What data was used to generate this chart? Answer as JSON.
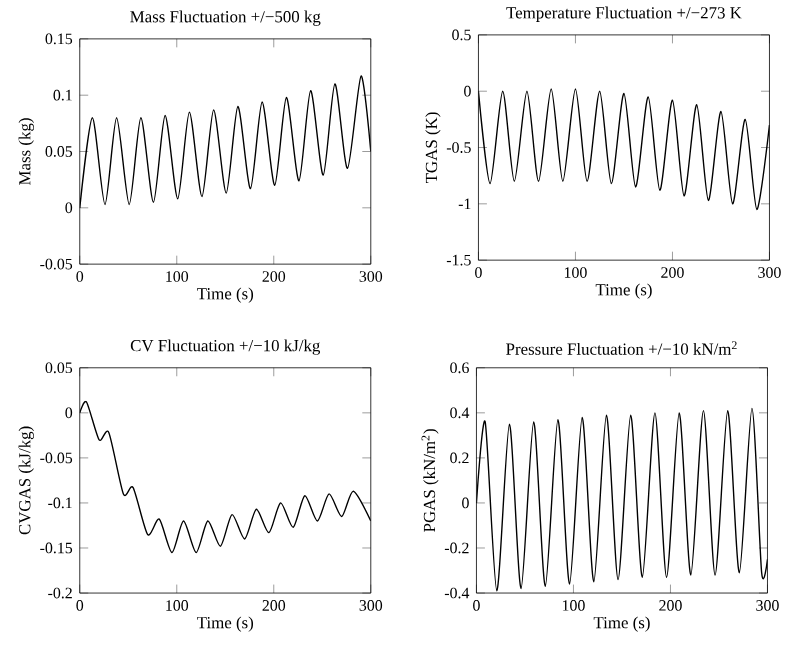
{
  "chart_data": [
    {
      "type": "line",
      "title": "Mass Fluctuation +/−500 kg",
      "xlabel": "Time (s)",
      "ylabel": "Mass (kg)",
      "xlim": [
        0,
        300
      ],
      "ylim": [
        -0.05,
        0.15
      ],
      "xticks": [
        0,
        100,
        200,
        300
      ],
      "yticks": [
        -0.05,
        0,
        0.05,
        0.1,
        0.15
      ],
      "grid": false,
      "series": [
        {
          "color": "#000000",
          "x": [
            0,
            13,
            26,
            38,
            51,
            63,
            76,
            88,
            101,
            113,
            126,
            138,
            151,
            163,
            176,
            188,
            201,
            213,
            226,
            238,
            251,
            263,
            276,
            290,
            300
          ],
          "values": [
            0,
            0.08,
            0.003,
            0.08,
            0.003,
            0.08,
            0.005,
            0.082,
            0.008,
            0.085,
            0.01,
            0.087,
            0.013,
            0.09,
            0.017,
            0.094,
            0.02,
            0.098,
            0.024,
            0.104,
            0.029,
            0.11,
            0.035,
            0.117,
            0.05
          ]
        }
      ]
    },
    {
      "type": "line",
      "title": "Temperature Fluctuation +/−273 K",
      "xlabel": "Time (s)",
      "ylabel": "TGAS (K)",
      "xlim": [
        0,
        300
      ],
      "ylim": [
        -1.5,
        0.5
      ],
      "xticks": [
        0,
        100,
        200,
        300
      ],
      "yticks": [
        -1.5,
        -1,
        -0.5,
        0,
        0.5
      ],
      "grid": false,
      "series": [
        {
          "color": "#000000",
          "x": [
            0,
            12,
            25,
            37,
            50,
            62,
            75,
            87,
            100,
            112,
            125,
            137,
            150,
            162,
            175,
            187,
            200,
            212,
            225,
            237,
            250,
            262,
            275,
            287,
            300
          ],
          "values": [
            0,
            -0.82,
            0,
            -0.8,
            0,
            -0.8,
            0.02,
            -0.8,
            0.02,
            -0.8,
            0,
            -0.82,
            -0.02,
            -0.85,
            -0.05,
            -0.88,
            -0.08,
            -0.93,
            -0.12,
            -0.97,
            -0.18,
            -1.0,
            -0.25,
            -1.05,
            -0.3
          ]
        }
      ]
    },
    {
      "type": "line",
      "title": "CV Fluctuation +/−10 kJ/kg",
      "xlabel": "Time (s)",
      "ylabel": "CVGAS (kJ/kg)",
      "xlim": [
        0,
        300
      ],
      "ylim": [
        -0.2,
        0.05
      ],
      "xticks": [
        0,
        100,
        200,
        300
      ],
      "yticks": [
        -0.2,
        -0.15,
        -0.1,
        -0.05,
        0,
        0.05
      ],
      "grid": false,
      "series": [
        {
          "color": "#000000",
          "x": [
            0,
            7,
            20,
            30,
            45,
            55,
            70,
            82,
            95,
            107,
            120,
            132,
            145,
            157,
            170,
            182,
            195,
            207,
            220,
            232,
            245,
            257,
            270,
            282,
            300
          ],
          "values": [
            0,
            0.012,
            -0.03,
            -0.022,
            -0.09,
            -0.083,
            -0.135,
            -0.118,
            -0.155,
            -0.12,
            -0.155,
            -0.12,
            -0.148,
            -0.113,
            -0.14,
            -0.107,
            -0.133,
            -0.1,
            -0.127,
            -0.092,
            -0.12,
            -0.09,
            -0.115,
            -0.087,
            -0.12
          ]
        }
      ]
    },
    {
      "type": "line",
      "title": "Pressure Fluctuation +/−10 kN/m$^{2}$",
      "xlabel": "Time (s)",
      "ylabel": "PGAS (kN/m$^{2}$)",
      "xlim": [
        0,
        300
      ],
      "ylim": [
        -0.4,
        0.6
      ],
      "xticks": [
        0,
        100,
        200,
        300
      ],
      "yticks": [
        -0.4,
        -0.2,
        0,
        0.2,
        0.4,
        0.6
      ],
      "grid": false,
      "series": [
        {
          "color": "#000000",
          "x": [
            0,
            9,
            21,
            34,
            46,
            59,
            71,
            84,
            96,
            109,
            121,
            134,
            146,
            159,
            171,
            184,
            196,
            209,
            221,
            234,
            246,
            259,
            271,
            284,
            294,
            300
          ],
          "values": [
            0,
            0.36,
            -0.39,
            0.35,
            -0.38,
            0.36,
            -0.37,
            0.37,
            -0.36,
            0.38,
            -0.35,
            0.39,
            -0.34,
            0.39,
            -0.33,
            0.4,
            -0.33,
            0.4,
            -0.32,
            0.41,
            -0.32,
            0.41,
            -0.31,
            0.42,
            -0.31,
            -0.25
          ]
        }
      ]
    }
  ]
}
